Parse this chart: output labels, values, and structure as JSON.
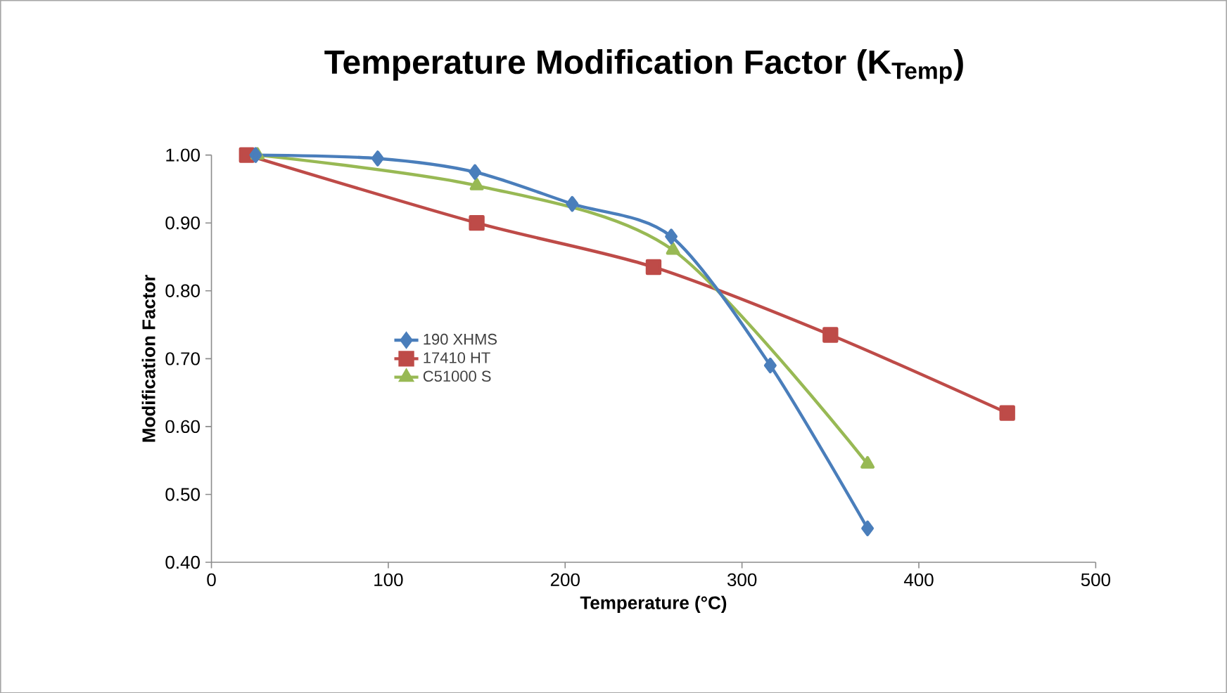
{
  "chart_data": {
    "type": "line",
    "title": "Temperature Modification Factor (K$_{Temp}$)",
    "xlabel": "Temperature (°C)",
    "ylabel": "Modification Factor",
    "xlim": [
      0,
      500
    ],
    "xticks": [
      0,
      100,
      200,
      300,
      400,
      500
    ],
    "ylim": [
      0.4,
      1.0
    ],
    "yticks": [
      {
        "value": 0.4,
        "label": "0.40"
      },
      {
        "value": 0.5,
        "label": "0.50"
      },
      {
        "value": 0.6,
        "label": "0.60"
      },
      {
        "value": 0.7,
        "label": "0.70"
      },
      {
        "value": 0.8,
        "label": "0.80"
      },
      {
        "value": 0.9,
        "label": "0.90"
      },
      {
        "value": 1.0,
        "label": "1.00"
      }
    ],
    "legend": "left",
    "grid": false,
    "series": [
      {
        "name": "190 XHMS",
        "color": "#4a7ebb",
        "marker": "diamond",
        "x": [
          25,
          94,
          149,
          204,
          260,
          316,
          371
        ],
        "values": [
          1.0,
          0.995,
          0.975,
          0.928,
          0.88,
          0.69,
          0.45
        ]
      },
      {
        "name": "17410 HT",
        "color": "#be4b48",
        "marker": "square",
        "x": [
          20,
          150,
          250,
          350,
          450
        ],
        "values": [
          1.0,
          0.9,
          0.835,
          0.735,
          0.62
        ]
      },
      {
        "name": "C51000 S",
        "color": "#98b954",
        "marker": "triangle",
        "x": [
          26,
          150,
          261,
          371
        ],
        "values": [
          1.0,
          0.955,
          0.86,
          0.545
        ]
      }
    ]
  }
}
